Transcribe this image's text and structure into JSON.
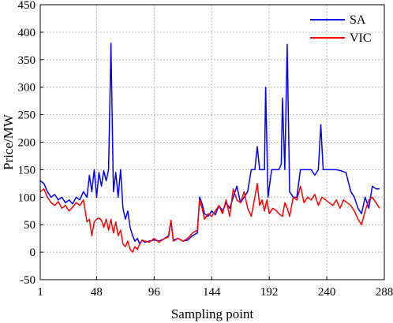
{
  "chart_data": {
    "type": "line",
    "title": "",
    "xlabel": "Sampling point",
    "ylabel": "Price/MW",
    "xlim": [
      1,
      288
    ],
    "ylim": [
      -50,
      450
    ],
    "xticks": [
      1,
      48,
      96,
      144,
      192,
      240,
      288
    ],
    "yticks": [
      -50,
      0,
      50,
      100,
      150,
      200,
      250,
      300,
      350,
      400,
      450
    ],
    "grid": true,
    "legend_position": "top-right",
    "series": [
      {
        "name": "SA",
        "color": "#0000ff",
        "points": [
          [
            1,
            130
          ],
          [
            4,
            125
          ],
          [
            7,
            110
          ],
          [
            10,
            100
          ],
          [
            13,
            105
          ],
          [
            16,
            95
          ],
          [
            19,
            100
          ],
          [
            22,
            90
          ],
          [
            25,
            95
          ],
          [
            28,
            88
          ],
          [
            31,
            100
          ],
          [
            34,
            95
          ],
          [
            37,
            110
          ],
          [
            40,
            100
          ],
          [
            42,
            140
          ],
          [
            44,
            110
          ],
          [
            46,
            150
          ],
          [
            48,
            100
          ],
          [
            50,
            145
          ],
          [
            52,
            120
          ],
          [
            54,
            148
          ],
          [
            56,
            130
          ],
          [
            58,
            150
          ],
          [
            60,
            380
          ],
          [
            62,
            110
          ],
          [
            64,
            145
          ],
          [
            66,
            100
          ],
          [
            68,
            150
          ],
          [
            70,
            80
          ],
          [
            72,
            60
          ],
          [
            74,
            75
          ],
          [
            76,
            45
          ],
          [
            78,
            30
          ],
          [
            80,
            20
          ],
          [
            82,
            25
          ],
          [
            84,
            15
          ],
          [
            86,
            22
          ],
          [
            88,
            18
          ],
          [
            92,
            20
          ],
          [
            96,
            22
          ],
          [
            100,
            20
          ],
          [
            104,
            24
          ],
          [
            108,
            30
          ],
          [
            110,
            58
          ],
          [
            112,
            22
          ],
          [
            116,
            25
          ],
          [
            120,
            20
          ],
          [
            124,
            22
          ],
          [
            128,
            30
          ],
          [
            132,
            35
          ],
          [
            134,
            100
          ],
          [
            136,
            88
          ],
          [
            138,
            70
          ],
          [
            141,
            65
          ],
          [
            144,
            75
          ],
          [
            147,
            68
          ],
          [
            150,
            85
          ],
          [
            153,
            75
          ],
          [
            156,
            90
          ],
          [
            159,
            80
          ],
          [
            162,
            100
          ],
          [
            165,
            120
          ],
          [
            168,
            90
          ],
          [
            171,
            100
          ],
          [
            174,
            110
          ],
          [
            177,
            150
          ],
          [
            180,
            150
          ],
          [
            182,
            192
          ],
          [
            184,
            150
          ],
          [
            186,
            150
          ],
          [
            188,
            150
          ],
          [
            189,
            300
          ],
          [
            191,
            100
          ],
          [
            194,
            150
          ],
          [
            197,
            150
          ],
          [
            200,
            150
          ],
          [
            202,
            160
          ],
          [
            203,
            280
          ],
          [
            205,
            150
          ],
          [
            207,
            378
          ],
          [
            209,
            110
          ],
          [
            212,
            100
          ],
          [
            215,
            100
          ],
          [
            218,
            150
          ],
          [
            221,
            150
          ],
          [
            224,
            150
          ],
          [
            227,
            150
          ],
          [
            230,
            140
          ],
          [
            233,
            150
          ],
          [
            235,
            232
          ],
          [
            237,
            150
          ],
          [
            240,
            150
          ],
          [
            244,
            150
          ],
          [
            248,
            150
          ],
          [
            252,
            148
          ],
          [
            256,
            145
          ],
          [
            260,
            110
          ],
          [
            263,
            100
          ],
          [
            266,
            80
          ],
          [
            269,
            70
          ],
          [
            272,
            100
          ],
          [
            275,
            80
          ],
          [
            278,
            120
          ],
          [
            281,
            115
          ],
          [
            284,
            115
          ]
        ]
      },
      {
        "name": "VIC",
        "color": "#ff0000",
        "points": [
          [
            1,
            110
          ],
          [
            4,
            115
          ],
          [
            7,
            100
          ],
          [
            10,
            90
          ],
          [
            13,
            85
          ],
          [
            16,
            92
          ],
          [
            19,
            80
          ],
          [
            22,
            85
          ],
          [
            25,
            75
          ],
          [
            28,
            82
          ],
          [
            31,
            90
          ],
          [
            34,
            85
          ],
          [
            37,
            95
          ],
          [
            40,
            55
          ],
          [
            42,
            60
          ],
          [
            44,
            30
          ],
          [
            46,
            55
          ],
          [
            48,
            60
          ],
          [
            50,
            62
          ],
          [
            52,
            58
          ],
          [
            54,
            45
          ],
          [
            56,
            60
          ],
          [
            58,
            40
          ],
          [
            60,
            60
          ],
          [
            62,
            35
          ],
          [
            64,
            55
          ],
          [
            66,
            30
          ],
          [
            68,
            40
          ],
          [
            70,
            15
          ],
          [
            72,
            10
          ],
          [
            74,
            20
          ],
          [
            76,
            5
          ],
          [
            78,
            0
          ],
          [
            80,
            10
          ],
          [
            82,
            5
          ],
          [
            84,
            15
          ],
          [
            86,
            22
          ],
          [
            88,
            20
          ],
          [
            92,
            18
          ],
          [
            96,
            25
          ],
          [
            100,
            18
          ],
          [
            104,
            24
          ],
          [
            108,
            28
          ],
          [
            110,
            58
          ],
          [
            112,
            20
          ],
          [
            116,
            25
          ],
          [
            120,
            20
          ],
          [
            124,
            25
          ],
          [
            128,
            35
          ],
          [
            132,
            40
          ],
          [
            134,
            95
          ],
          [
            136,
            80
          ],
          [
            138,
            60
          ],
          [
            141,
            70
          ],
          [
            144,
            65
          ],
          [
            147,
            75
          ],
          [
            150,
            85
          ],
          [
            153,
            70
          ],
          [
            156,
            95
          ],
          [
            159,
            65
          ],
          [
            162,
            115
          ],
          [
            165,
            95
          ],
          [
            168,
            90
          ],
          [
            171,
            110
          ],
          [
            174,
            80
          ],
          [
            177,
            65
          ],
          [
            180,
            100
          ],
          [
            182,
            125
          ],
          [
            184,
            85
          ],
          [
            186,
            95
          ],
          [
            188,
            75
          ],
          [
            190,
            95
          ],
          [
            192,
            70
          ],
          [
            195,
            80
          ],
          [
            198,
            75
          ],
          [
            200,
            70
          ],
          [
            203,
            65
          ],
          [
            205,
            90
          ],
          [
            207,
            80
          ],
          [
            209,
            65
          ],
          [
            212,
            100
          ],
          [
            215,
            95
          ],
          [
            218,
            120
          ],
          [
            221,
            90
          ],
          [
            224,
            100
          ],
          [
            227,
            95
          ],
          [
            230,
            105
          ],
          [
            233,
            85
          ],
          [
            236,
            100
          ],
          [
            239,
            95
          ],
          [
            242,
            90
          ],
          [
            245,
            85
          ],
          [
            248,
            95
          ],
          [
            251,
            80
          ],
          [
            254,
            95
          ],
          [
            257,
            90
          ],
          [
            260,
            85
          ],
          [
            263,
            75
          ],
          [
            266,
            60
          ],
          [
            269,
            50
          ],
          [
            272,
            75
          ],
          [
            275,
            95
          ],
          [
            278,
            100
          ],
          [
            281,
            90
          ],
          [
            284,
            80
          ]
        ]
      }
    ]
  }
}
